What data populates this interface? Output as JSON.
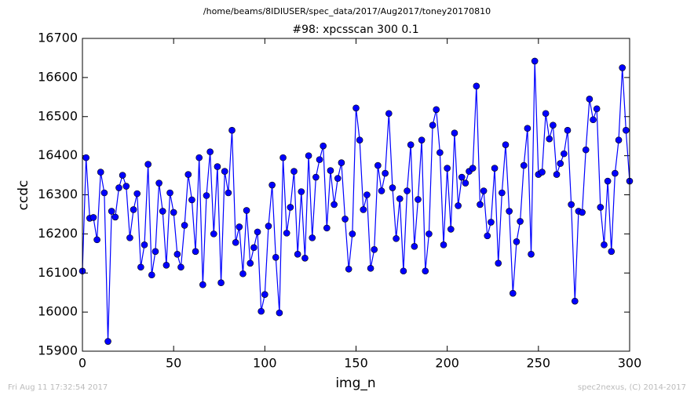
{
  "chart_data": {
    "type": "line",
    "header": "/home/beams/8IDIUSER/spec_data/2017/Aug2017/toney20170810",
    "title": "#98: xpcsscan 300 0.1",
    "x_label": "img_n",
    "y_label": "ccdc",
    "footer_left": "Fri Aug 11 17:32:54 2017",
    "footer_right": "spec2nexus, (C) 2014-2017",
    "xlim": [
      0,
      300
    ],
    "xticks": [
      0,
      50,
      100,
      150,
      200,
      250,
      300
    ],
    "ylim": [
      15900,
      16700
    ],
    "yticks": [
      15900,
      16000,
      16100,
      16200,
      16300,
      16400,
      16500,
      16600,
      16700
    ],
    "grid": false,
    "x": [
      0,
      2,
      4,
      6,
      8,
      10,
      12,
      14,
      16,
      18,
      20,
      22,
      24,
      26,
      28,
      30,
      32,
      34,
      36,
      38,
      40,
      42,
      44,
      46,
      48,
      50,
      52,
      54,
      56,
      58,
      60,
      62,
      64,
      66,
      68,
      70,
      72,
      74,
      76,
      78,
      80,
      82,
      84,
      86,
      88,
      90,
      92,
      94,
      96,
      98,
      100,
      102,
      104,
      106,
      108,
      110,
      112,
      114,
      116,
      118,
      120,
      122,
      124,
      126,
      128,
      130,
      132,
      134,
      136,
      138,
      140,
      142,
      144,
      146,
      148,
      150,
      152,
      154,
      156,
      158,
      160,
      162,
      164,
      166,
      168,
      170,
      172,
      174,
      176,
      178,
      180,
      182,
      184,
      186,
      188,
      190,
      192,
      194,
      196,
      198,
      200,
      202,
      204,
      206,
      208,
      210,
      212,
      214,
      216,
      218,
      220,
      222,
      224,
      226,
      228,
      230,
      232,
      234,
      236,
      238,
      240,
      242,
      244,
      246,
      248,
      250,
      252,
      254,
      256,
      258,
      260,
      262,
      264,
      266,
      268,
      270,
      272,
      274,
      276,
      278,
      280,
      282,
      284,
      286,
      288,
      290,
      292,
      294,
      296,
      298,
      300
    ],
    "series": [
      {
        "color": "#0000ff",
        "values": [
          16105,
          16395,
          16240,
          16242,
          16185,
          16358,
          16305,
          15925,
          16258,
          16243,
          16318,
          16350,
          16322,
          16190,
          16262,
          16303,
          16115,
          16172,
          16378,
          16095,
          16155,
          16330,
          16258,
          16120,
          16305,
          16255,
          16148,
          16115,
          16222,
          16352,
          16287,
          16155,
          16395,
          16070,
          16298,
          16410,
          16200,
          16372,
          16075,
          16360,
          16305,
          16465,
          16178,
          16218,
          16098,
          16260,
          16125,
          16165,
          16205,
          16002,
          16045,
          16220,
          16325,
          16140,
          15998,
          16395,
          16202,
          16268,
          16360,
          16148,
          16308,
          16138,
          16400,
          16190,
          16345,
          16390,
          16425,
          16215,
          16362,
          16275,
          16342,
          16382,
          16238,
          16110,
          16200,
          16522,
          16440,
          16262,
          16300,
          16112,
          16160,
          16375,
          16310,
          16355,
          16508,
          16318,
          16188,
          16290,
          16105,
          16310,
          16428,
          16168,
          16288,
          16440,
          16105,
          16200,
          16478,
          16518,
          16408,
          16172,
          16368,
          16212,
          16458,
          16272,
          16345,
          16330,
          16360,
          16368,
          16578,
          16275,
          16310,
          16195,
          16230,
          16368,
          16125,
          16305,
          16428,
          16258,
          16048,
          16180,
          16232,
          16375,
          16470,
          16148,
          16642,
          16352,
          16358,
          16508,
          16443,
          16478,
          16352,
          16380,
          16405,
          16465,
          16275,
          16028,
          16258,
          16255,
          16415,
          16545,
          16492,
          16520,
          16268,
          16172,
          16335,
          16155,
          16355,
          16440,
          16625,
          16465,
          16335
        ]
      }
    ]
  }
}
